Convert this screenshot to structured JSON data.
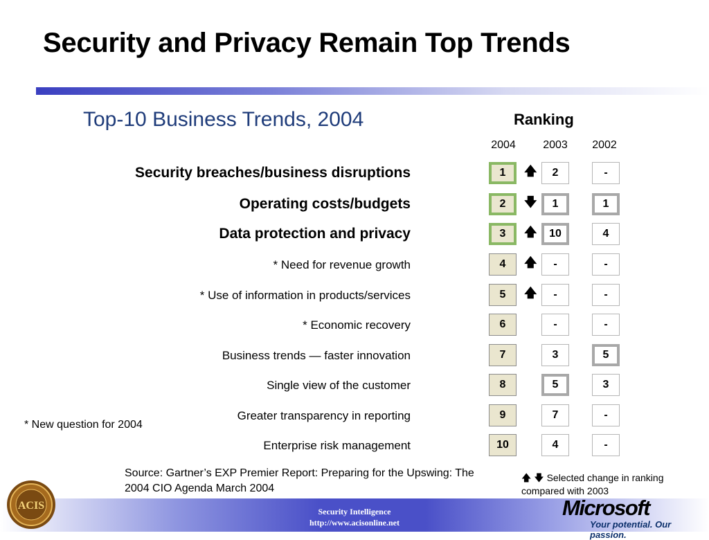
{
  "slide": {
    "title": "Security and Privacy Remain Top Trends",
    "subtitle": "Top-10 Business Trends, 2004",
    "ranking_label": "Ranking",
    "years": [
      "2004",
      "2003",
      "2002"
    ]
  },
  "trends": [
    {
      "label": "Security breaches/business disruptions",
      "r2004": "1",
      "arrow": "up",
      "r2003": "2",
      "r2002": "-"
    },
    {
      "label": "Operating costs/budgets",
      "r2004": "2",
      "arrow": "down",
      "r2003": "1",
      "r2002": "1"
    },
    {
      "label": "Data protection and privacy",
      "r2004": "3",
      "arrow": "up",
      "r2003": "10",
      "r2002": "4"
    },
    {
      "label": "* Need for revenue growth",
      "r2004": "4",
      "arrow": "up",
      "r2003": "-",
      "r2002": "-"
    },
    {
      "label": "* Use of information in products/services",
      "r2004": "5",
      "arrow": "up",
      "r2003": "-",
      "r2002": "-"
    },
    {
      "label": "* Economic recovery",
      "r2004": "6",
      "arrow": "",
      "r2003": "-",
      "r2002": "-"
    },
    {
      "label": "Business trends  — faster innovation",
      "r2004": "7",
      "arrow": "",
      "r2003": "3",
      "r2002": "5"
    },
    {
      "label": "Single view of the customer",
      "r2004": "8",
      "arrow": "",
      "r2003": "5",
      "r2002": "3"
    },
    {
      "label": "Greater transparency in reporting",
      "r2004": "9",
      "arrow": "",
      "r2003": "7",
      "r2002": "-"
    },
    {
      "label": "Enterprise risk management",
      "r2004": "10",
      "arrow": "",
      "r2003": "4",
      "r2002": "-"
    }
  ],
  "footnote": "*  New question for 2004",
  "source": "Source: Gartner’s EXP Premier Report: Preparing for the Upswing: The 2004 CIO Agenda  March 2004",
  "legend": "Selected change in ranking compared with 2003",
  "footer": {
    "line1": "Security Intelligence",
    "line2": "http://www.acisonline.net"
  },
  "branding": {
    "seal_text": "ACIS",
    "ms_logo": "Microsoft",
    "ms_tagline": "Your potential. Our passion."
  },
  "colors": {
    "subtitle": "#1f3c7a",
    "highlight_green": "#8ab864",
    "highlight_gray": "#a8a8a8",
    "rank2004_fill": "#eae6cf"
  },
  "icons": {
    "up": "up-arrow-icon",
    "down": "down-arrow-icon"
  }
}
